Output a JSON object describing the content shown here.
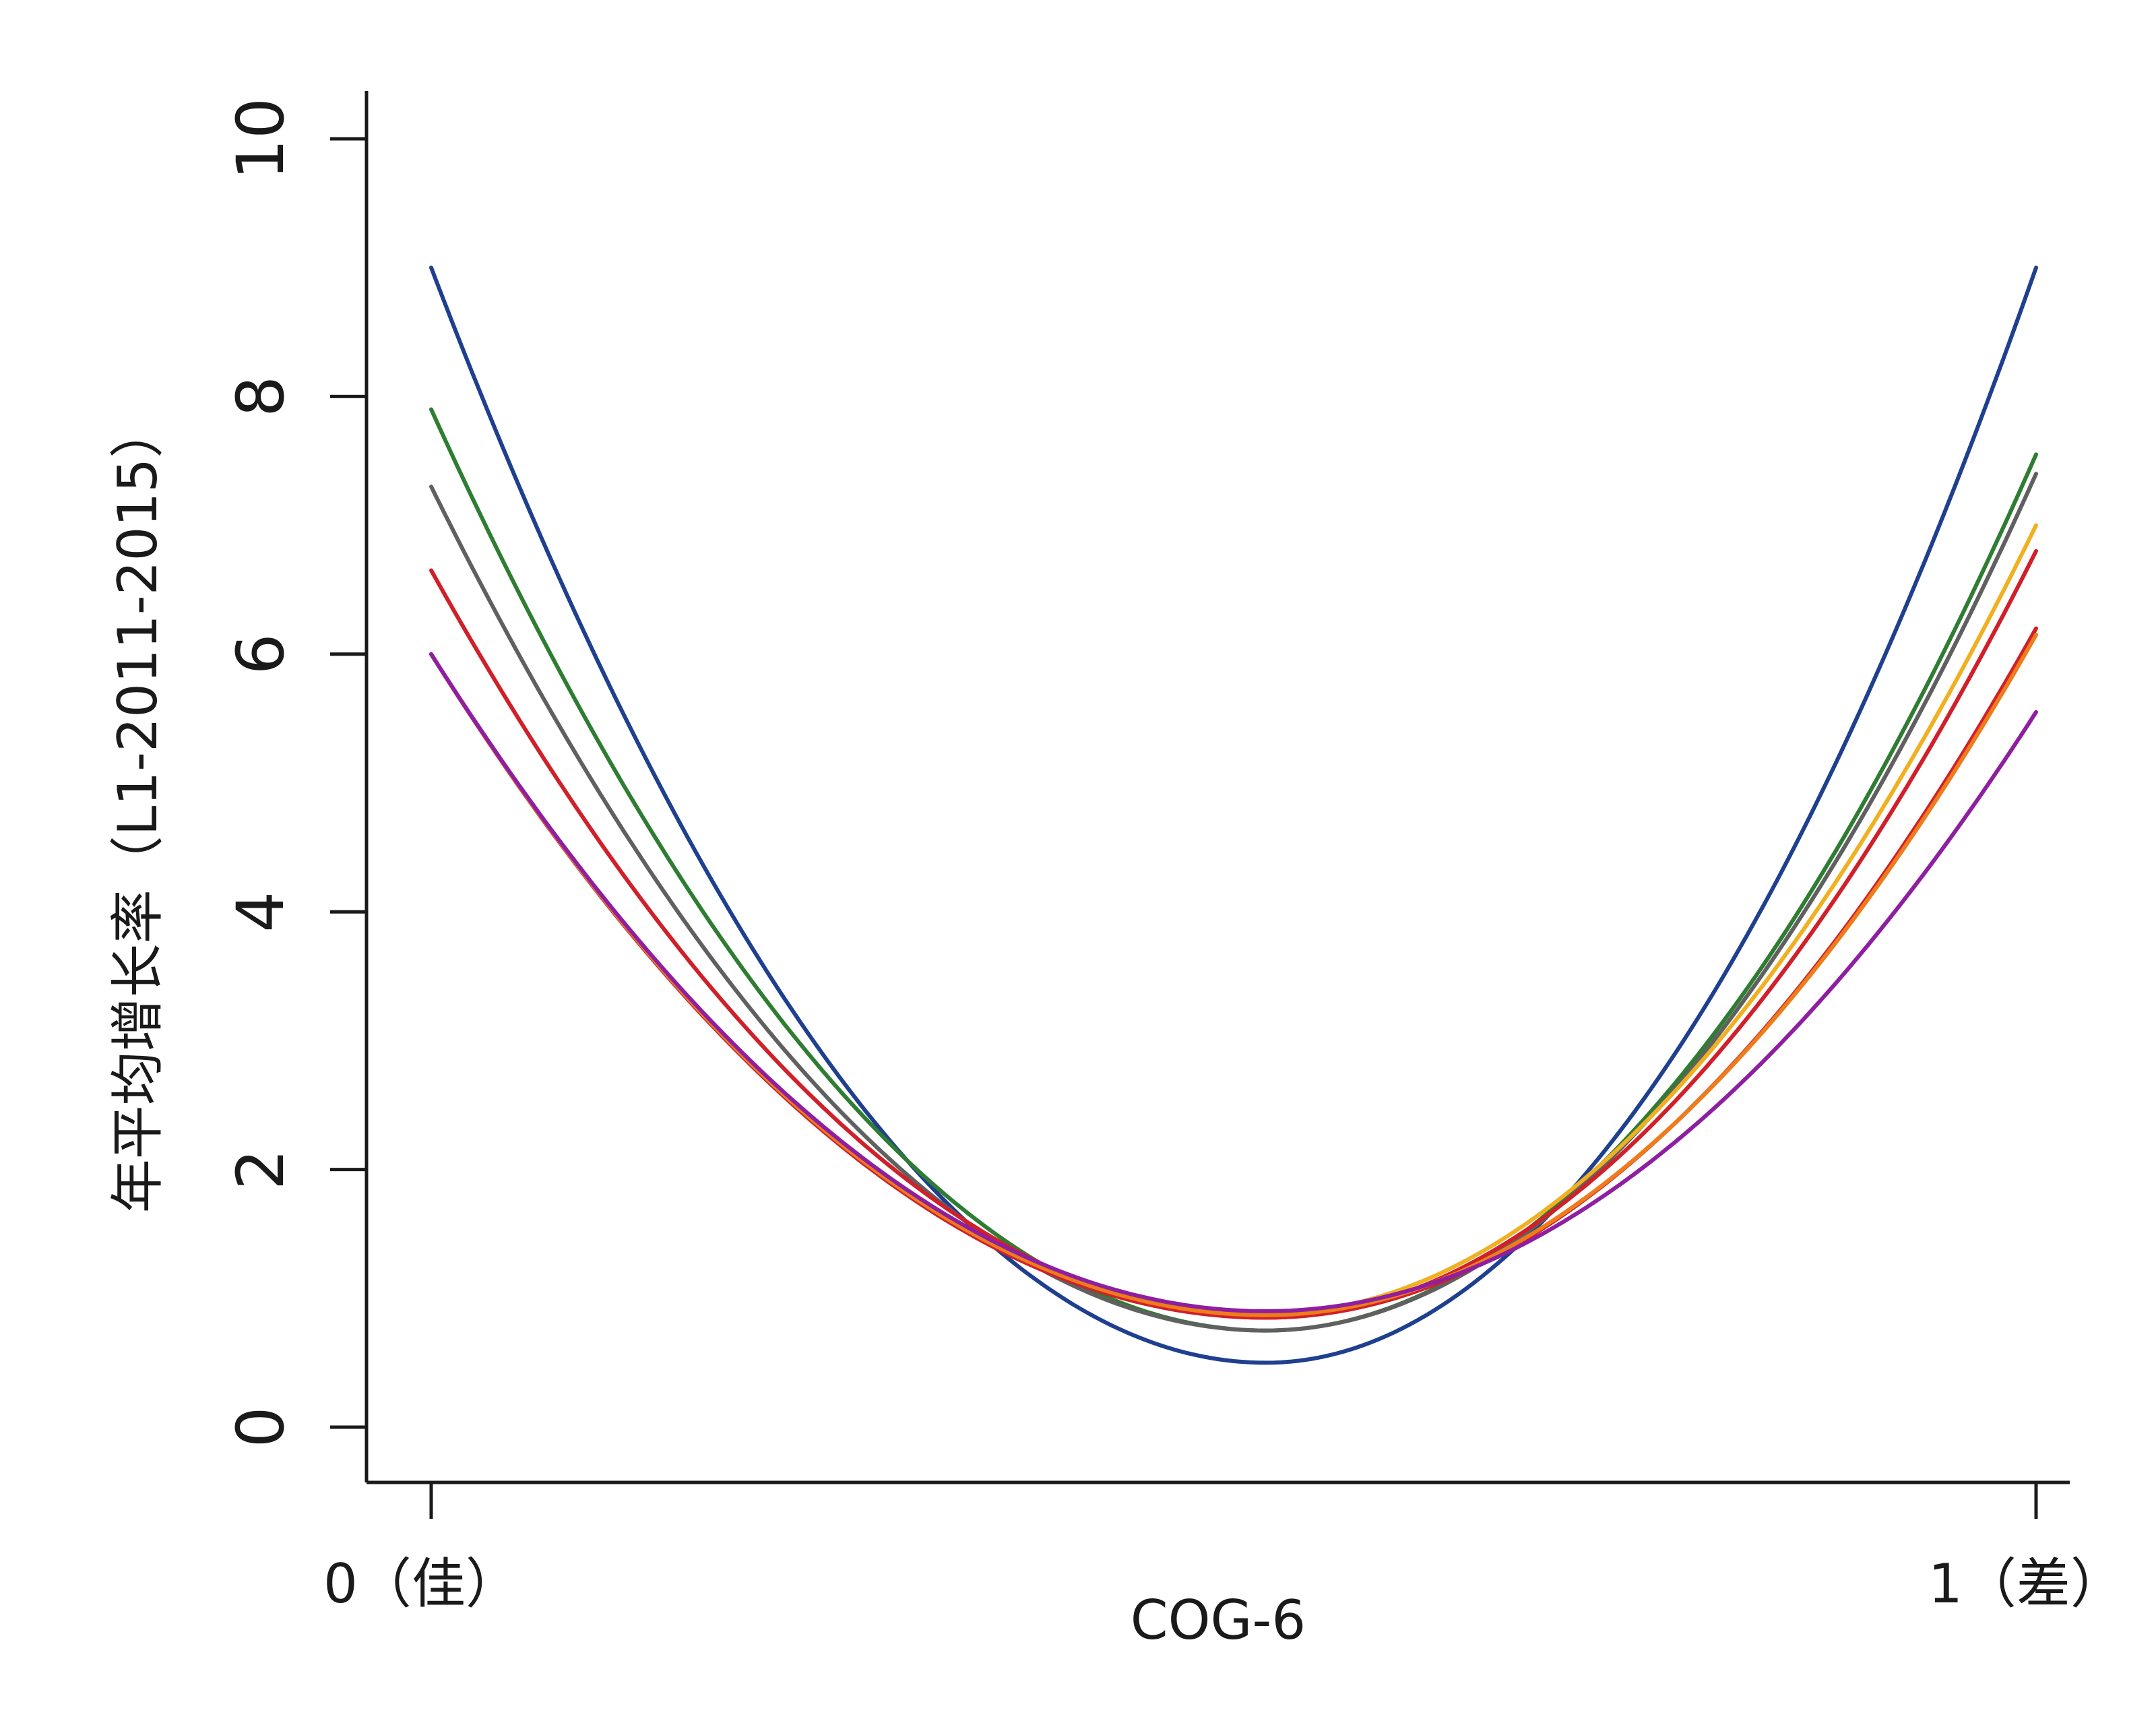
{
  "chart_data": {
    "type": "line",
    "title": "",
    "xlabel": "COG-6",
    "ylabel": "年平均增长率（L1-2011-2015）",
    "xlim": [
      0,
      1
    ],
    "ylim": [
      0,
      10
    ],
    "x_ticks": [
      {
        "value": 0,
        "label": "0（佳）"
      },
      {
        "value": 1,
        "label": "1（差）"
      }
    ],
    "y_ticks": [
      {
        "value": 0,
        "label": "0"
      },
      {
        "value": 2,
        "label": "2"
      },
      {
        "value": 4,
        "label": "4"
      },
      {
        "value": 6,
        "label": "6"
      },
      {
        "value": 8,
        "label": "8"
      },
      {
        "value": 10,
        "label": "10"
      }
    ],
    "grid": false,
    "legend": "none",
    "curve_shape": "quadratic",
    "series": [
      {
        "color": "#1f3f8f",
        "y_at_0": 9.0,
        "y_at_1": 9.0,
        "min_x": 0.52,
        "min_y": 0.5
      },
      {
        "color": "#2e7d32",
        "y_at_0": 7.9,
        "y_at_1": 7.55,
        "min_x": 0.52,
        "min_y": 0.75
      },
      {
        "color": "#606060",
        "y_at_0": 7.3,
        "y_at_1": 7.4,
        "min_x": 0.52,
        "min_y": 0.75
      },
      {
        "color": "#f0b020",
        "y_at_0": 6.0,
        "y_at_1": 7.0,
        "min_x": 0.52,
        "min_y": 0.88
      },
      {
        "color": "#d0202a",
        "y_at_0": 6.65,
        "y_at_1": 6.8,
        "min_x": 0.52,
        "min_y": 0.85
      },
      {
        "color": "#d0202a",
        "y_at_0": 6.0,
        "y_at_1": 6.2,
        "min_x": 0.52,
        "min_y": 0.85
      },
      {
        "color": "#ef7c1a",
        "y_at_0": 6.0,
        "y_at_1": 6.15,
        "min_x": 0.52,
        "min_y": 0.87
      },
      {
        "color": "#8e1fa0",
        "y_at_0": 6.0,
        "y_at_1": 5.55,
        "min_x": 0.52,
        "min_y": 0.9
      }
    ]
  }
}
